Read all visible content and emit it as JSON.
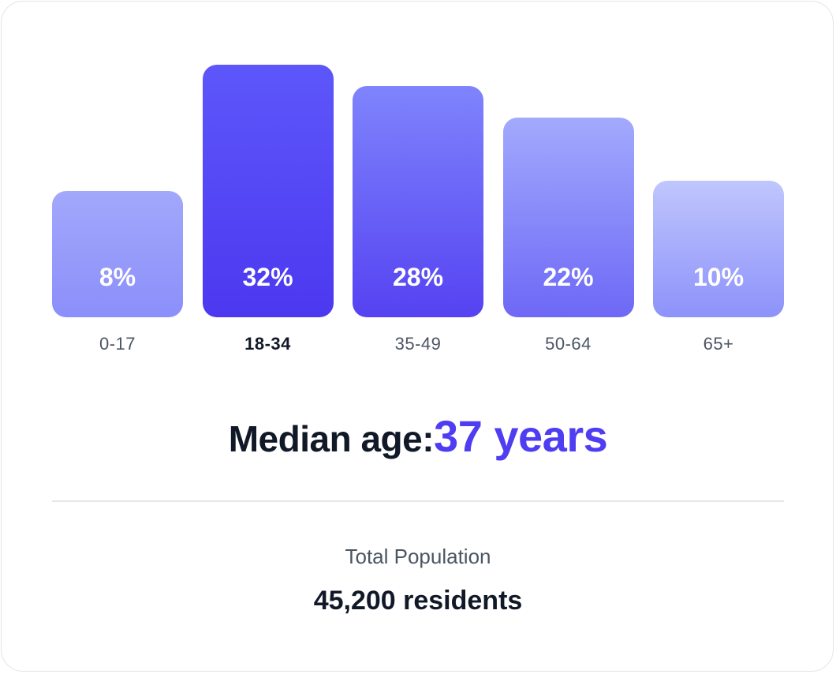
{
  "chart_data": {
    "type": "bar",
    "categories": [
      "0-17",
      "18-34",
      "35-49",
      "50-64",
      "65+"
    ],
    "values": [
      8,
      32,
      28,
      22,
      10
    ],
    "value_labels": [
      "8%",
      "32%",
      "28%",
      "22%",
      "10%"
    ],
    "highlighted_category": "18-34",
    "ylim": [
      0,
      32
    ],
    "grid": false,
    "title": "",
    "xlabel": "",
    "ylabel": ""
  },
  "colors": {
    "accent": "#4f3df2",
    "bar_gradients": [
      [
        "#a2a8fb",
        "#8b8ffa"
      ],
      [
        "#5d57fa",
        "#4c38f0"
      ],
      [
        "#7f84fc",
        "#5542f2"
      ],
      [
        "#a2aafd",
        "#6e68f6"
      ],
      [
        "#c0c6fd",
        "#8d92fa"
      ]
    ]
  },
  "summary": {
    "median_label": "Median age:",
    "median_value": "37 years",
    "total_label": "Total Population",
    "total_value": "45,200 residents"
  }
}
